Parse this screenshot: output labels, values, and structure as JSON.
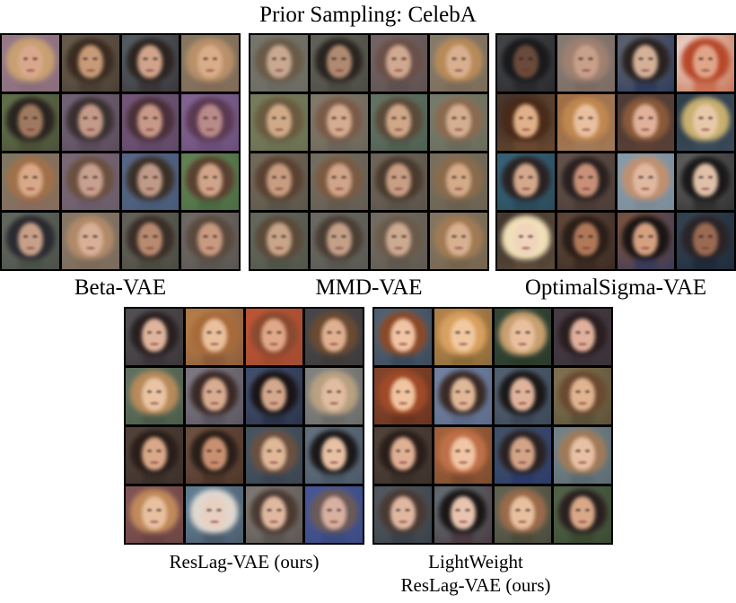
{
  "title": "Prior Sampling: CelebA",
  "panels": [
    {
      "label": "Beta-VAE",
      "faces": [
        {
          "bg": "#9a7d8e",
          "hair": "#c8a070",
          "skin": "#d9a88c",
          "neck": "#8a6d7a"
        },
        {
          "bg": "#6f6454",
          "hair": "#3a2b20",
          "skin": "#c79a78",
          "neck": "#4a3e33"
        },
        {
          "bg": "#5a6a70",
          "hair": "#2d2420",
          "skin": "#d0a38a",
          "neck": "#3a3438"
        },
        {
          "bg": "#8a7b62",
          "hair": "#b8906a",
          "skin": "#d8ad88",
          "neck": "#806a58"
        },
        {
          "bg": "#667a4e",
          "hair": "#2a2420",
          "skin": "#a07a60",
          "neck": "#4c5038"
        },
        {
          "bg": "#7c6a80",
          "hair": "#3a3030",
          "skin": "#c49a88",
          "neck": "#5a4a5a"
        },
        {
          "bg": "#7a5a7e",
          "hair": "#4a3038",
          "skin": "#c89888",
          "neck": "#604866"
        },
        {
          "bg": "#8a6a9a",
          "hair": "#5a3a52",
          "skin": "#b88a88",
          "neck": "#6a4e78"
        },
        {
          "bg": "#7a7a66",
          "hair": "#a0704a",
          "skin": "#d8a888",
          "neck": "#8a6a5a"
        },
        {
          "bg": "#7e6c7a",
          "hair": "#6a5040",
          "skin": "#c8a090",
          "neck": "#6a5a6a"
        },
        {
          "bg": "#5a6a88",
          "hair": "#3a3028",
          "skin": "#c09a88",
          "neck": "#485a78"
        },
        {
          "bg": "#6a8a5a",
          "hair": "#5a4030",
          "skin": "#d0a488",
          "neck": "#4a6a42"
        },
        {
          "bg": "#6a7066",
          "hair": "#2a2a30",
          "skin": "#c8a08a",
          "neck": "#4a5048"
        },
        {
          "bg": "#8a7a6a",
          "hair": "#b08a68",
          "skin": "#d8b098",
          "neck": "#7a6a5a"
        },
        {
          "bg": "#6c6a60",
          "hair": "#3a2e28",
          "skin": "#b88a70",
          "neck": "#4a4a40"
        },
        {
          "bg": "#76706a",
          "hair": "#5a4a3e",
          "skin": "#c89a80",
          "neck": "#5a5450"
        }
      ]
    },
    {
      "label": "MMD-VAE",
      "faces": [
        {
          "bg": "#7a7a70",
          "hair": "#6a5a48",
          "skin": "#c8a890",
          "neck": "#6a6a60"
        },
        {
          "bg": "#6a6a60",
          "hair": "#2a2420",
          "skin": "#b08a70",
          "neck": "#4a4a42"
        },
        {
          "bg": "#7a6a6a",
          "hair": "#6a5048",
          "skin": "#d0a890",
          "neck": "#5e5050"
        },
        {
          "bg": "#8a8070",
          "hair": "#b88a58",
          "skin": "#d8b090",
          "neck": "#7a6a58"
        },
        {
          "bg": "#7a8060",
          "hair": "#6a5a40",
          "skin": "#d0aa88",
          "neck": "#6a7050"
        },
        {
          "bg": "#8a8070",
          "hair": "#7a5a48",
          "skin": "#d4ac90",
          "neck": "#6a6458"
        },
        {
          "bg": "#6a7a6a",
          "hair": "#5a4a3a",
          "skin": "#d0a888",
          "neck": "#4e5e50"
        },
        {
          "bg": "#7a8070",
          "hair": "#8a6a50",
          "skin": "#d4ae90",
          "neck": "#6a6a5a"
        },
        {
          "bg": "#7a7060",
          "hair": "#5a4232",
          "skin": "#c89c80",
          "neck": "#5a5448"
        },
        {
          "bg": "#7a7468",
          "hair": "#7a5a42",
          "skin": "#d0a488",
          "neck": "#625a50"
        },
        {
          "bg": "#746c60",
          "hair": "#4a3a2e",
          "skin": "#c89e84",
          "neck": "#5a5248"
        },
        {
          "bg": "#7e7462",
          "hair": "#8a6a4c",
          "skin": "#d4aa88",
          "neck": "#6a6050"
        },
        {
          "bg": "#6a6e64",
          "hair": "#5a4a3a",
          "skin": "#c8a488",
          "neck": "#505448"
        },
        {
          "bg": "#707068",
          "hair": "#4a3e34",
          "skin": "#c4a088",
          "neck": "#585650"
        },
        {
          "bg": "#7a7268",
          "hair": "#6a5a4a",
          "skin": "#ccaa90",
          "neck": "#5e5850"
        },
        {
          "bg": "#8a7a66",
          "hair": "#a07a54",
          "skin": "#d8b090",
          "neck": "#74644e"
        }
      ]
    },
    {
      "label": "OptimalSigma-VAE",
      "faces": [
        {
          "bg": "#4a4c50",
          "hair": "#1a1a1c",
          "skin": "#6a4a3a",
          "neck": "#2a2a2e"
        },
        {
          "bg": "#8a8078",
          "hair": "#a08070",
          "skin": "#c8a08a",
          "neck": "#7a6a62"
        },
        {
          "bg": "#6a6e78",
          "hair": "#2a2220",
          "skin": "#d4b098",
          "neck": "#2e3a5a"
        },
        {
          "bg": "#f0ece8",
          "hair": "#b8482a",
          "skin": "#e0a488",
          "neck": "#c87050"
        },
        {
          "bg": "#3a2e28",
          "hair": "#4a2a18",
          "skin": "#e0b088",
          "neck": "#6a4830"
        },
        {
          "bg": "#a06a40",
          "hair": "#c08850",
          "skin": "#e8c0a0",
          "neck": "#a07a58"
        },
        {
          "bg": "#4a3a36",
          "hair": "#8a5a3a",
          "skin": "#e0b098",
          "neck": "#5a4036"
        },
        {
          "bg": "#2a3a48",
          "hair": "#c8b070",
          "skin": "#e8c8a8",
          "neck": "#3a4a58"
        },
        {
          "bg": "#3a6a80",
          "hair": "#2a2222",
          "skin": "#d4a88c",
          "neck": "#2a4a5a"
        },
        {
          "bg": "#6a5a52",
          "hair": "#2a2020",
          "skin": "#c89078",
          "neck": "#4a3a34"
        },
        {
          "bg": "#8aa0b0",
          "hair": "#c09070",
          "skin": "#e0b8a0",
          "neck": "#7a8a98"
        },
        {
          "bg": "#6a6a6a",
          "hair": "#1a1818",
          "skin": "#e0c0a8",
          "neck": "#303030"
        },
        {
          "bg": "#3a3028",
          "hair": "#f0e0b8",
          "skin": "#f0d4bc",
          "neck": "#5a4a3a"
        },
        {
          "bg": "#6a5040",
          "hair": "#2a1e18",
          "skin": "#b07858",
          "neck": "#3a2a22"
        },
        {
          "bg": "#8a5a3a",
          "hair": "#1a1414",
          "skin": "#d4a080",
          "neck": "#3a3a5a"
        },
        {
          "bg": "#3a4a58",
          "hair": "#2a2428",
          "skin": "#9a6a52",
          "neck": "#1e2a3a"
        }
      ]
    },
    {
      "label": "ResLag-VAE (ours)",
      "faces": [
        {
          "bg": "#5a5a5e",
          "hair": "#2a2020",
          "skin": "#e0b49c",
          "neck": "#3a3438"
        },
        {
          "bg": "#c08850",
          "hair": "#a86a3a",
          "skin": "#e8c09c",
          "neck": "#8a5a3a"
        },
        {
          "bg": "#c85838",
          "hair": "#8a4a30",
          "skin": "#e0a888",
          "neck": "#a04a30"
        },
        {
          "bg": "#4a4a4e",
          "hair": "#6a4a32",
          "skin": "#e0b090",
          "neck": "#3e3a3a"
        },
        {
          "bg": "#6a7a68",
          "hair": "#b88a5a",
          "skin": "#e8c4a4",
          "neck": "#4a5a48"
        },
        {
          "bg": "#8a8490",
          "hair": "#3a2a26",
          "skin": "#d8ac90",
          "neck": "#5a545e"
        },
        {
          "bg": "#4a5a7a",
          "hair": "#1a1416",
          "skin": "#d4a88c",
          "neck": "#2a3248"
        },
        {
          "bg": "#8a8a88",
          "hair": "#b8a080",
          "skin": "#e0bca0",
          "neck": "#6a6a68"
        },
        {
          "bg": "#5a4a40",
          "hair": "#2a1e1a",
          "skin": "#d8a888",
          "neck": "#3a2e28"
        },
        {
          "bg": "#7a5a48",
          "hair": "#2a1e18",
          "skin": "#c89070",
          "neck": "#4a3428"
        },
        {
          "bg": "#4a5a68",
          "hair": "#6a5040",
          "skin": "#e0b898",
          "neck": "#3a4450"
        },
        {
          "bg": "#6a7a88",
          "hair": "#1a1818",
          "skin": "#e8c0a4",
          "neck": "#4a5866"
        },
        {
          "bg": "#8a5a58",
          "hair": "#c08a5a",
          "skin": "#e8c0a0",
          "neck": "#6a4444"
        },
        {
          "bg": "#6a8aa0",
          "hair": "#e0d8d0",
          "skin": "#e8d0c0",
          "neck": "#4a5a6a"
        },
        {
          "bg": "#8a8480",
          "hair": "#4a3a32",
          "skin": "#e0b8a0",
          "neck": "#5a5450"
        },
        {
          "bg": "#4a5aa0",
          "hair": "#6a5a58",
          "skin": "#d8b0a0",
          "neck": "#3a4a80"
        }
      ]
    },
    {
      "label1": "LightWeight",
      "label2": "ResLag-VAE (ours)",
      "faces": [
        {
          "bg": "#5a6a7a",
          "hair": "#8a4a2a",
          "skin": "#f0c4a4",
          "neck": "#3a4a5a"
        },
        {
          "bg": "#c08a50",
          "hair": "#d8a060",
          "skin": "#f0c8a0",
          "neck": "#8a6a3a"
        },
        {
          "bg": "#3a4a3a",
          "hair": "#c8a070",
          "skin": "#e8c0a0",
          "neck": "#2a3a2a"
        },
        {
          "bg": "#4a4048",
          "hair": "#2a1e20",
          "skin": "#e0b09c",
          "neck": "#3a3038"
        },
        {
          "bg": "#8a4a30",
          "hair": "#a04a28",
          "skin": "#f0c4a0",
          "neck": "#6a3420"
        },
        {
          "bg": "#7a8aa8",
          "hair": "#3a2a26",
          "skin": "#e0b898",
          "neck": "#5a6a88"
        },
        {
          "bg": "#5a6a7a",
          "hair": "#1a1818",
          "skin": "#e0b49c",
          "neck": "#3a4656"
        },
        {
          "bg": "#8a7a58",
          "hair": "#6a4a30",
          "skin": "#e0b490",
          "neck": "#5a5038"
        },
        {
          "bg": "#5a4a3e",
          "hair": "#2a1e1a",
          "skin": "#e0b094",
          "neck": "#3a302a"
        },
        {
          "bg": "#b06a40",
          "hair": "#c07048",
          "skin": "#f0c4a4",
          "neck": "#7a4a2e"
        },
        {
          "bg": "#4a5a6a",
          "hair": "#2a2222",
          "skin": "#d4a488",
          "neck": "#2a3a6a"
        },
        {
          "bg": "#7a8a90",
          "hair": "#a07a58",
          "skin": "#e8c0a4",
          "neck": "#5a6a70"
        },
        {
          "bg": "#5a6068",
          "hair": "#4a3a34",
          "skin": "#e0b8a0",
          "neck": "#3a4048"
        },
        {
          "bg": "#6a7a80",
          "hair": "#1a1616",
          "skin": "#e8c4b0",
          "neck": "#4a3a40"
        },
        {
          "bg": "#6a6a5a",
          "hair": "#9a6a4a",
          "skin": "#e8c0a0",
          "neck": "#4a4a3a"
        },
        {
          "bg": "#5a6a50",
          "hair": "#2a2020",
          "skin": "#d8a888",
          "neck": "#3a4a30"
        }
      ]
    }
  ]
}
